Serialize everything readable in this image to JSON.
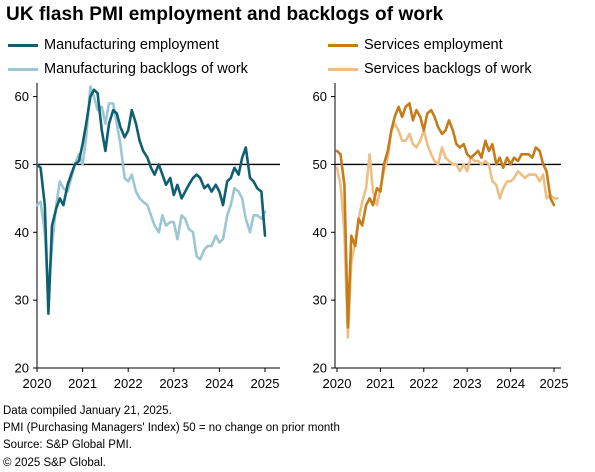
{
  "title": "UK flash PMI employment  and backlogs of work",
  "legend": [
    {
      "label": "Manufacturing employment",
      "color": "#0f5f73"
    },
    {
      "label": "Manufacturing backlogs of work",
      "color": "#9cc6d2"
    },
    {
      "label": "Services employment",
      "color": "#c57c19"
    },
    {
      "label": "Services backlogs of work",
      "color": "#eebf84"
    }
  ],
  "footnotes": [
    "Data compiled January 21, 2025.",
    "PMI (Purchasing Managers' Index) 50 = no change on prior month",
    "Source: S&P Global PMI.",
    "© 2025 S&P Global."
  ],
  "chart_data": [
    {
      "type": "line",
      "ylim": [
        20,
        62
      ],
      "yticks": [
        20,
        30,
        40,
        50,
        60
      ],
      "xlim": [
        2020,
        2025.2
      ],
      "xticks": [
        2020,
        2021,
        2022,
        2023,
        2024,
        2025
      ],
      "reference_line": 50,
      "series": [
        {
          "name": "Manufacturing employment",
          "color": "#0f5f73",
          "x": [
            2020.0,
            2020.08,
            2020.17,
            2020.25,
            2020.33,
            2020.42,
            2020.5,
            2020.58,
            2020.67,
            2020.75,
            2020.83,
            2020.92,
            2021.0,
            2021.08,
            2021.17,
            2021.25,
            2021.33,
            2021.42,
            2021.5,
            2021.58,
            2021.67,
            2021.75,
            2021.83,
            2021.92,
            2022.0,
            2022.08,
            2022.17,
            2022.25,
            2022.33,
            2022.42,
            2022.5,
            2022.58,
            2022.67,
            2022.75,
            2022.83,
            2022.92,
            2023.0,
            2023.08,
            2023.17,
            2023.25,
            2023.33,
            2023.42,
            2023.5,
            2023.58,
            2023.67,
            2023.75,
            2023.83,
            2023.92,
            2024.0,
            2024.08,
            2024.17,
            2024.25,
            2024.33,
            2024.42,
            2024.5,
            2024.58,
            2024.67,
            2024.75,
            2024.83,
            2024.92,
            2025.0
          ],
          "y": [
            50.0,
            49.5,
            44.0,
            28.0,
            41.0,
            43.5,
            45.0,
            44.0,
            47.0,
            48.5,
            50.0,
            50.5,
            53.0,
            56.0,
            60.0,
            61.0,
            60.5,
            55.0,
            52.0,
            56.0,
            58.0,
            57.5,
            55.5,
            54.0,
            55.0,
            58.0,
            56.0,
            53.5,
            52.0,
            51.0,
            49.5,
            48.5,
            50.0,
            48.5,
            47.0,
            48.0,
            45.5,
            47.0,
            45.0,
            46.0,
            47.0,
            48.0,
            48.5,
            48.0,
            46.5,
            47.0,
            46.0,
            47.0,
            46.0,
            44.0,
            47.5,
            48.0,
            49.5,
            48.5,
            51.0,
            52.5,
            48.0,
            47.5,
            46.5,
            46.0,
            39.5
          ]
        },
        {
          "name": "Manufacturing backlogs of work",
          "color": "#9cc6d2",
          "x": [
            2020.0,
            2020.08,
            2020.17,
            2020.25,
            2020.33,
            2020.42,
            2020.5,
            2020.58,
            2020.67,
            2020.75,
            2020.83,
            2020.92,
            2021.0,
            2021.08,
            2021.17,
            2021.25,
            2021.33,
            2021.42,
            2021.5,
            2021.58,
            2021.67,
            2021.75,
            2021.83,
            2021.92,
            2022.0,
            2022.08,
            2022.17,
            2022.25,
            2022.33,
            2022.42,
            2022.5,
            2022.58,
            2022.67,
            2022.75,
            2022.83,
            2022.92,
            2023.0,
            2023.08,
            2023.17,
            2023.25,
            2023.33,
            2023.42,
            2023.5,
            2023.58,
            2023.67,
            2023.75,
            2023.83,
            2023.92,
            2024.0,
            2024.08,
            2024.17,
            2024.25,
            2024.33,
            2024.42,
            2024.5,
            2024.58,
            2024.67,
            2024.75,
            2024.83,
            2024.92,
            2025.0
          ],
          "y": [
            44.0,
            44.5,
            40.0,
            31.0,
            38.0,
            44.0,
            47.5,
            46.5,
            46.0,
            48.0,
            50.0,
            51.5,
            50.0,
            54.0,
            61.5,
            60.0,
            58.0,
            58.5,
            56.0,
            59.0,
            59.0,
            56.0,
            53.0,
            48.0,
            47.5,
            48.5,
            46.0,
            45.0,
            44.5,
            44.0,
            42.5,
            41.0,
            40.0,
            42.5,
            41.0,
            41.5,
            41.5,
            39.0,
            42.5,
            42.0,
            40.5,
            40.0,
            36.5,
            36.0,
            37.5,
            38.0,
            38.0,
            39.5,
            38.5,
            39.0,
            42.5,
            44.0,
            46.5,
            46.0,
            45.0,
            42.0,
            40.0,
            42.5,
            42.5,
            42.0,
            43.0
          ]
        }
      ]
    },
    {
      "type": "line",
      "ylim": [
        20,
        62
      ],
      "yticks": [
        20,
        30,
        40,
        50,
        60
      ],
      "xlim": [
        2020,
        2025.2
      ],
      "xticks": [
        2020,
        2021,
        2022,
        2023,
        2024,
        2025
      ],
      "reference_line": 50,
      "series": [
        {
          "name": "Services employment",
          "color": "#c57c19",
          "x": [
            2020.0,
            2020.08,
            2020.17,
            2020.25,
            2020.33,
            2020.42,
            2020.5,
            2020.58,
            2020.67,
            2020.75,
            2020.83,
            2020.92,
            2021.0,
            2021.08,
            2021.17,
            2021.25,
            2021.33,
            2021.42,
            2021.5,
            2021.58,
            2021.67,
            2021.75,
            2021.83,
            2021.92,
            2022.0,
            2022.08,
            2022.17,
            2022.25,
            2022.33,
            2022.42,
            2022.5,
            2022.58,
            2022.67,
            2022.75,
            2022.83,
            2022.92,
            2023.0,
            2023.08,
            2023.17,
            2023.25,
            2023.33,
            2023.42,
            2023.5,
            2023.58,
            2023.67,
            2023.75,
            2023.83,
            2023.92,
            2024.0,
            2024.08,
            2024.17,
            2024.25,
            2024.33,
            2024.42,
            2024.5,
            2024.58,
            2024.67,
            2024.75,
            2024.83,
            2024.92,
            2025.0
          ],
          "y": [
            52.0,
            51.5,
            47.0,
            26.0,
            39.5,
            38.0,
            42.0,
            41.0,
            44.0,
            45.0,
            44.0,
            46.5,
            46.0,
            50.0,
            52.0,
            55.0,
            57.0,
            58.5,
            57.0,
            58.5,
            59.0,
            56.5,
            58.0,
            57.0,
            55.0,
            57.5,
            58.0,
            57.0,
            55.5,
            54.5,
            55.0,
            56.5,
            55.0,
            53.0,
            52.5,
            53.0,
            51.5,
            51.0,
            51.5,
            52.0,
            51.0,
            53.5,
            52.0,
            53.0,
            50.0,
            51.0,
            49.5,
            51.0,
            50.0,
            51.0,
            50.5,
            51.5,
            51.5,
            51.5,
            51.0,
            52.5,
            52.0,
            50.0,
            49.0,
            45.0,
            44.0
          ]
        },
        {
          "name": "Services backlogs of work",
          "color": "#eebf84",
          "x": [
            2020.0,
            2020.08,
            2020.17,
            2020.25,
            2020.33,
            2020.42,
            2020.5,
            2020.58,
            2020.67,
            2020.75,
            2020.83,
            2020.92,
            2021.0,
            2021.08,
            2021.17,
            2021.25,
            2021.33,
            2021.42,
            2021.5,
            2021.58,
            2021.67,
            2021.75,
            2021.83,
            2021.92,
            2022.0,
            2022.08,
            2022.17,
            2022.25,
            2022.33,
            2022.42,
            2022.5,
            2022.58,
            2022.67,
            2022.75,
            2022.83,
            2022.92,
            2023.0,
            2023.08,
            2023.17,
            2023.25,
            2023.33,
            2023.42,
            2023.5,
            2023.58,
            2023.67,
            2023.75,
            2023.83,
            2023.92,
            2024.0,
            2024.08,
            2024.17,
            2024.25,
            2024.33,
            2024.42,
            2024.5,
            2024.58,
            2024.67,
            2024.75,
            2024.83,
            2024.92,
            2025.0,
            2025.08
          ],
          "y": [
            49.5,
            47.0,
            40.0,
            24.5,
            35.5,
            38.5,
            42.0,
            44.5,
            46.5,
            51.5,
            46.0,
            44.0,
            46.5,
            49.0,
            51.0,
            55.0,
            56.0,
            55.0,
            53.5,
            53.5,
            54.5,
            53.0,
            52.5,
            53.5,
            55.0,
            53.0,
            51.5,
            50.5,
            50.0,
            52.5,
            51.0,
            50.5,
            50.0,
            50.0,
            49.0,
            50.0,
            49.0,
            51.0,
            50.5,
            50.5,
            50.0,
            50.5,
            50.0,
            47.5,
            47.0,
            45.0,
            46.5,
            47.5,
            47.5,
            48.0,
            49.0,
            48.5,
            48.0,
            48.5,
            48.5,
            48.5,
            47.5,
            48.5,
            45.0,
            45.5,
            45.0,
            45.0
          ]
        }
      ]
    }
  ]
}
